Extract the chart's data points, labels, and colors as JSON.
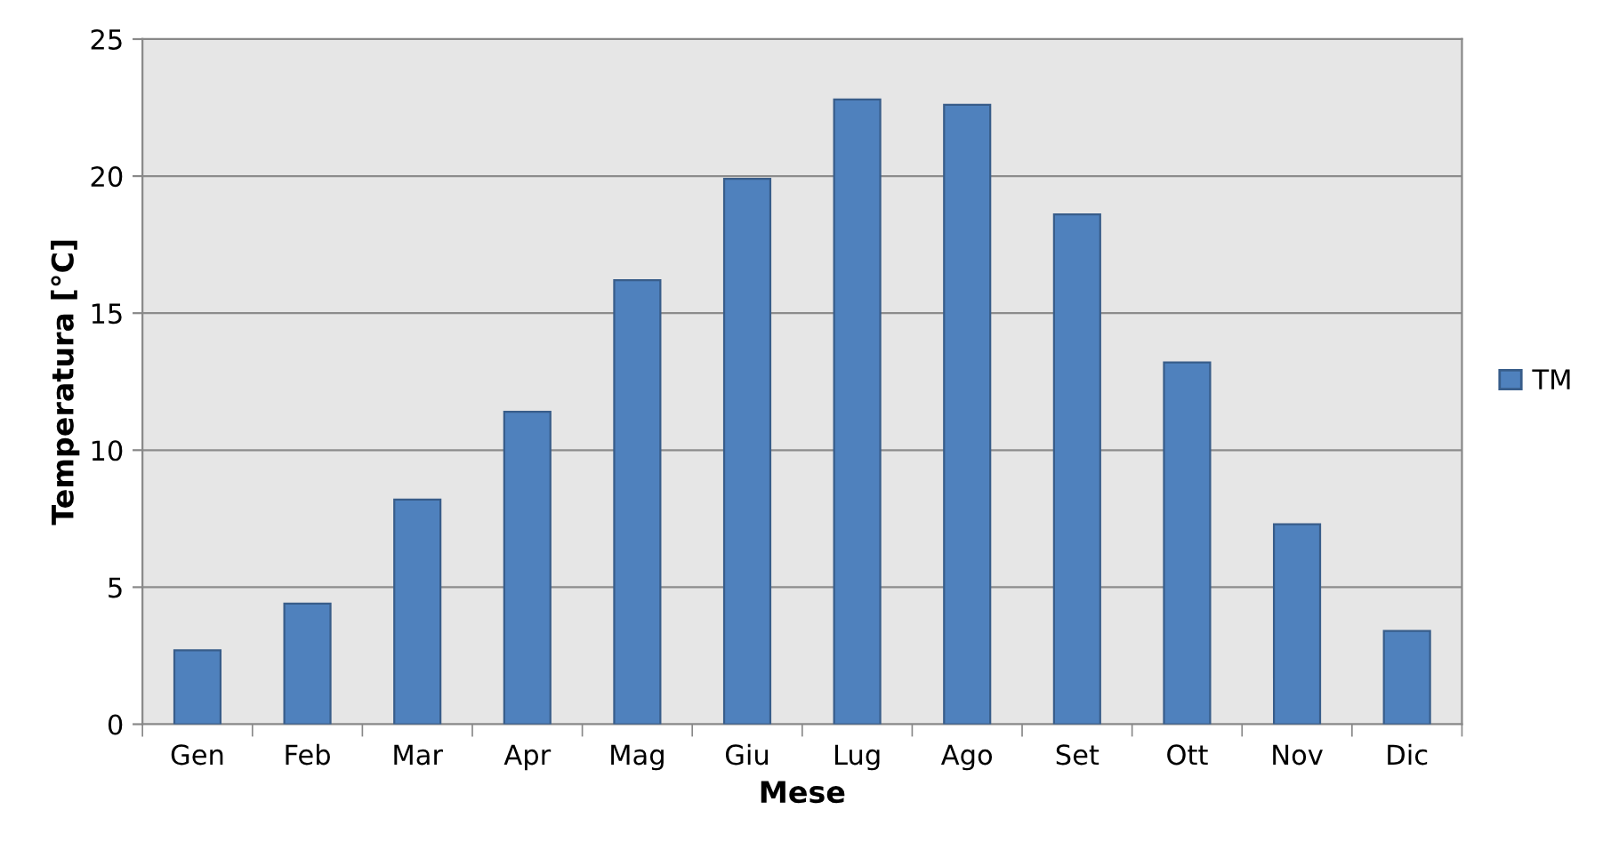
{
  "chart_data": {
    "type": "bar",
    "xlabel": "Mese",
    "ylabel": "Temperatura [°C]",
    "categories": [
      "Gen",
      "Feb",
      "Mar",
      "Apr",
      "Mag",
      "Giu",
      "Lug",
      "Ago",
      "Set",
      "Ott",
      "Nov",
      "Dic"
    ],
    "series": [
      {
        "name": "TM",
        "color": "#4f81bd",
        "values": [
          2.7,
          4.4,
          8.2,
          11.4,
          16.2,
          19.9,
          22.8,
          22.6,
          18.6,
          13.2,
          7.3,
          3.4
        ]
      }
    ],
    "ylim": [
      0,
      25
    ],
    "yticks": [
      0,
      5,
      10,
      15,
      20,
      25
    ],
    "grid": "y",
    "legend": "right"
  }
}
